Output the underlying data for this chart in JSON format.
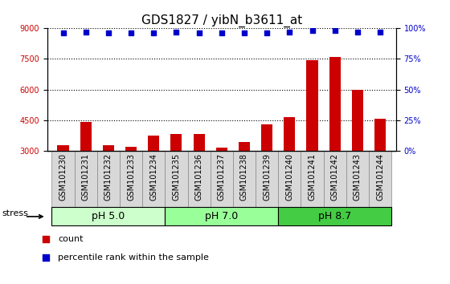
{
  "title": "GDS1827 / yibN_b3611_at",
  "samples": [
    "GSM101230",
    "GSM101231",
    "GSM101232",
    "GSM101233",
    "GSM101234",
    "GSM101235",
    "GSM101236",
    "GSM101237",
    "GSM101238",
    "GSM101239",
    "GSM101240",
    "GSM101241",
    "GSM101242",
    "GSM101243",
    "GSM101244"
  ],
  "counts": [
    3250,
    4400,
    3250,
    3200,
    3750,
    3800,
    3800,
    3150,
    3400,
    4300,
    4650,
    7450,
    7600,
    6000,
    4550
  ],
  "percentile_ranks": [
    96,
    97,
    96,
    96,
    96,
    97,
    96,
    96,
    96,
    96,
    97,
    98,
    98,
    97,
    97
  ],
  "groups": [
    {
      "label": "pH 5.0",
      "start": 0,
      "end": 4,
      "color": "#ccffcc"
    },
    {
      "label": "pH 7.0",
      "start": 5,
      "end": 9,
      "color": "#99ff99"
    },
    {
      "label": "pH 8.7",
      "start": 10,
      "end": 14,
      "color": "#44cc44"
    }
  ],
  "ylim_left": [
    3000,
    9000
  ],
  "ylim_right": [
    0,
    100
  ],
  "yticks_left": [
    3000,
    4500,
    6000,
    7500,
    9000
  ],
  "yticks_right": [
    0,
    25,
    50,
    75,
    100
  ],
  "bar_color": "#cc0000",
  "dot_color": "#0000cc",
  "bar_width": 0.5,
  "grid_color": "#000000",
  "bg_color": "#ffffff",
  "title_fontsize": 11,
  "tick_fontsize": 7,
  "label_fontsize": 8,
  "group_label_fontsize": 9
}
